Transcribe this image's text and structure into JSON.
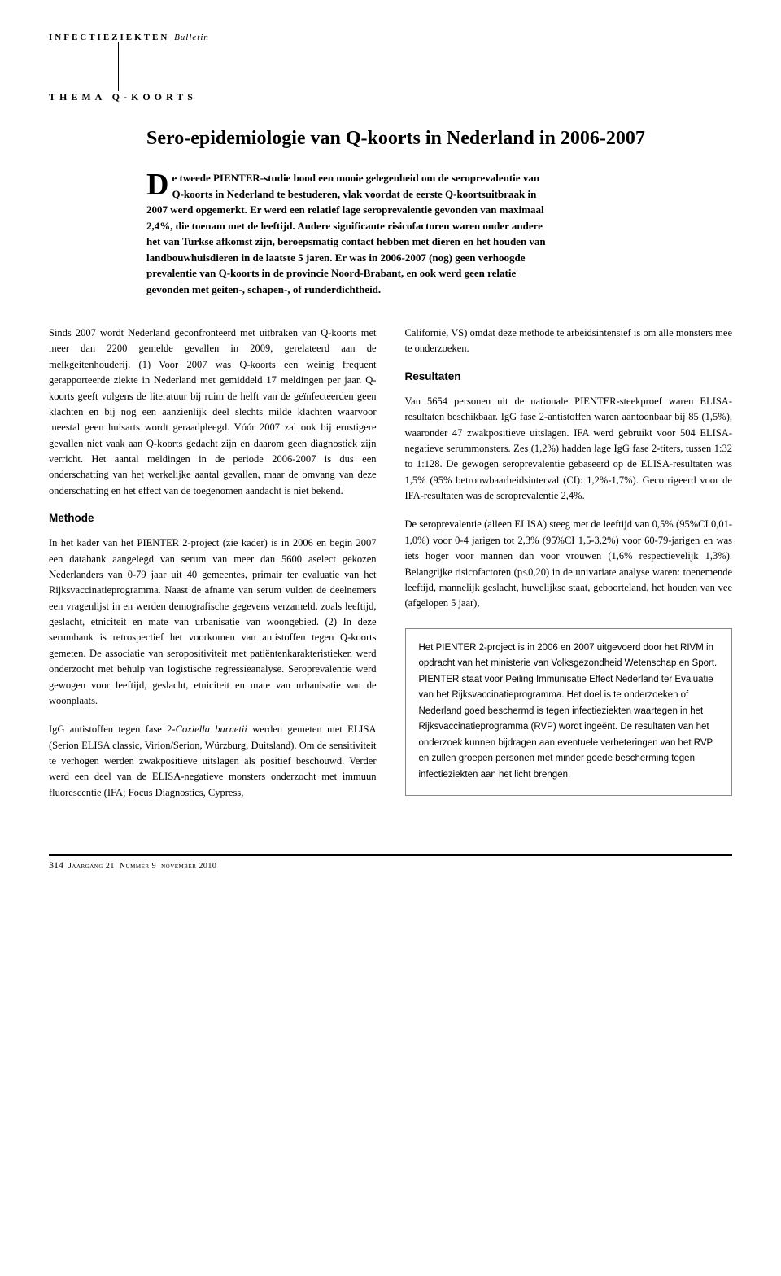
{
  "header": {
    "label_bold": "INFECTIEZIEKTEN",
    "label_italic": "Bulletin"
  },
  "theme": "THEMA Q-KOORTS",
  "title": "Sero-epidemiologie van Q-koorts in Nederland in 2006-2007",
  "summary": {
    "drop_cap": "D",
    "text": "e tweede PIENTER-studie bood een mooie gelegenheid om de seroprevalentie van Q-koorts in Nederland te bestuderen, vlak voordat de eerste Q-koortsuitbraak in 2007 werd opgemerkt. Er werd een relatief lage seroprevalentie gevonden van maximaal 2,4%, die toenam met de leeftijd. Andere significante risicofactoren waren onder andere het van Turkse afkomst zijn, beroepsmatig contact hebben met dieren en het houden van landbouwhuisdieren in de laatste 5 jaren. Er was in 2006-2007 (nog) geen verhoogde prevalentie van Q-koorts in de provincie Noord-Brabant, en ook werd geen relatie gevonden met geiten-, schapen-, of runderdichtheid."
  },
  "left_col": {
    "intro": "Sinds 2007 wordt Nederland geconfronteerd met uitbraken van Q-koorts met meer dan 2200 gemelde gevallen in 2009, gerelateerd aan de melkgeitenhouderij. (1) Voor 2007 was Q-koorts een weinig frequent gerapporteerde ziekte in Nederland met gemiddeld 17 meldingen per jaar. Q-koorts geeft volgens de literatuur bij ruim de helft van de geïnfecteerden geen klachten en bij nog een aanzienlijk deel slechts milde klachten waarvoor meestal geen huisarts wordt geraadpleegd. Vóór 2007 zal ook bij ernstigere gevallen niet vaak aan Q-koorts gedacht zijn en daarom geen diagnostiek zijn verricht. Het aantal meldingen in de periode 2006-2007 is dus een onderschatting van het werkelijke aantal gevallen, maar de omvang van deze onderschatting en het effect van de toegenomen aandacht is niet bekend.",
    "methode_heading": "Methode",
    "methode_p1": "In het kader van het PIENTER 2-project (zie kader) is in 2006 en begin 2007 een databank aangelegd van serum van meer dan 5600 aselect gekozen Nederlanders van 0-79 jaar uit 40 gemeentes, primair ter evaluatie van het Rijksvaccinatieprogramma. Naast de afname van serum vulden de deelnemers een vragenlijst in en werden demografische gegevens verzameld, zoals leeftijd, geslacht, etniciteit en mate van urbanisatie van woongebied. (2) In deze serumbank is retrospectief het voorkomen van antistoffen tegen Q-koorts gemeten. De associatie van seropositiviteit met patiëntenkarakteristieken werd onderzocht met behulp van logistische regressieanalyse. Seroprevalentie werd gewogen voor leeftijd, geslacht, etniciteit en mate van urbanisatie van de woonplaats.",
    "methode_p2_pre": "IgG antistoffen tegen fase 2-",
    "methode_p2_italic": "Coxiella burnetii",
    "methode_p2_post": " werden gemeten met ELISA (Serion ELISA classic, Virion/Serion, Würzburg, Duitsland). Om de sensitiviteit te verhogen werden zwakpositieve uitslagen als positief beschouwd. Verder werd een deel van de ELISA-negatieve monsters onderzocht met immuun fluorescentie (IFA; Focus Diagnostics, Cypress,"
  },
  "right_col": {
    "intro_end": "Californië, VS) omdat deze methode te arbeidsintensief is om alle monsters mee te onderzoeken.",
    "resultaten_heading": "Resultaten",
    "resultaten_p1": "Van 5654 personen uit de nationale PIENTER-steekproef waren ELISA-resultaten beschikbaar. IgG fase 2-antistoffen waren aantoonbaar bij 85 (1,5%), waaronder 47 zwakpositieve uitslagen. IFA werd gebruikt voor 504 ELISA-negatieve serummonsters. Zes (1,2%) hadden lage IgG fase 2-titers, tussen 1:32 to 1:128. De gewogen seroprevalentie gebaseerd op de ELISA-resultaten was 1,5% (95% betrouwbaarheidsinterval (CI): 1,2%-1,7%). Gecorrigeerd voor de IFA-resultaten was de seroprevalentie 2,4%.",
    "resultaten_p2": "De seroprevalentie (alleen ELISA) steeg met de leeftijd van 0,5% (95%CI 0,01-1,0%) voor 0-4 jarigen tot 2,3% (95%CI 1,5-3,2%) voor 60-79-jarigen en was iets hoger voor mannen dan voor vrouwen (1,6% respectievelijk 1,3%). Belangrijke risicofactoren (p<0,20) in de univariate analyse waren: toenemende leeftijd, mannelijk geslacht, huwelijkse staat, geboorteland, het houden van vee (afgelopen 5 jaar),"
  },
  "infobox": "Het PIENTER 2-project is in 2006 en 2007 uitgevoerd door het RIVM in opdracht van het ministerie van Volksgezondheid Wetenschap en Sport. PIENTER staat voor Peiling Immunisatie Effect Nederland ter Evaluatie van het Rijksvaccinatieprogramma. Het doel is te onderzoeken of Nederland goed beschermd is tegen infectieziekten waartegen in het Rijksvaccinatieprogramma (RVP) wordt ingeënt. De resultaten van het onderzoek kunnen bijdragen aan eventuele verbeteringen van het RVP en zullen groepen personen met minder goede bescherming tegen infectieziekten aan het licht brengen.",
  "footer": {
    "page": "314",
    "jaargang": "Jaargang 21",
    "nummer": "Nummer 9",
    "datum": "november 2010"
  }
}
